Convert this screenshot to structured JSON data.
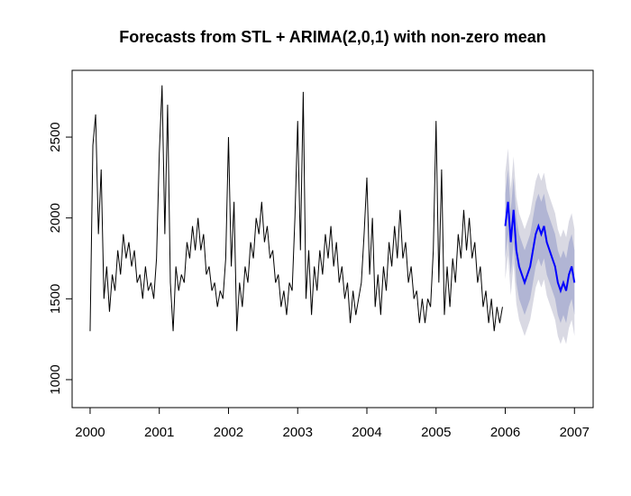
{
  "chart_data": {
    "type": "line",
    "title": "Forecasts from STL +  ARIMA(2,0,1) with non-zero mean",
    "xlim": [
      1999.74,
      2007.27
    ],
    "ylim": [
      827,
      2913
    ],
    "xticks": [
      2000,
      2001,
      2002,
      2003,
      2004,
      2005,
      2006,
      2007
    ],
    "yticks": [
      1000,
      1500,
      2000,
      2500
    ],
    "history": {
      "color": "#000000",
      "x": [
        2000.0,
        2000.04,
        2000.08,
        2000.12,
        2000.16,
        2000.2,
        2000.24,
        2000.28,
        2000.32,
        2000.36,
        2000.4,
        2000.44,
        2000.48,
        2000.52,
        2000.56,
        2000.6,
        2000.64,
        2000.68,
        2000.72,
        2000.76,
        2000.8,
        2000.84,
        2000.88,
        2000.92,
        2000.96,
        2001.0,
        2001.04,
        2001.08,
        2001.12,
        2001.16,
        2001.2,
        2001.24,
        2001.28,
        2001.32,
        2001.36,
        2001.4,
        2001.44,
        2001.48,
        2001.52,
        2001.56,
        2001.6,
        2001.64,
        2001.68,
        2001.72,
        2001.76,
        2001.8,
        2001.84,
        2001.88,
        2001.92,
        2001.96,
        2002.0,
        2002.04,
        2002.08,
        2002.12,
        2002.16,
        2002.2,
        2002.24,
        2002.28,
        2002.32,
        2002.36,
        2002.4,
        2002.44,
        2002.48,
        2002.52,
        2002.56,
        2002.6,
        2002.64,
        2002.68,
        2002.72,
        2002.76,
        2002.8,
        2002.84,
        2002.88,
        2002.92,
        2002.96,
        2003.0,
        2003.04,
        2003.08,
        2003.12,
        2003.16,
        2003.2,
        2003.24,
        2003.28,
        2003.32,
        2003.36,
        2003.4,
        2003.44,
        2003.48,
        2003.52,
        2003.56,
        2003.6,
        2003.64,
        2003.68,
        2003.72,
        2003.76,
        2003.8,
        2003.84,
        2003.88,
        2003.92,
        2003.96,
        2004.0,
        2004.04,
        2004.08,
        2004.12,
        2004.16,
        2004.2,
        2004.24,
        2004.28,
        2004.32,
        2004.36,
        2004.4,
        2004.44,
        2004.48,
        2004.52,
        2004.56,
        2004.6,
        2004.64,
        2004.68,
        2004.72,
        2004.76,
        2004.8,
        2004.84,
        2004.88,
        2004.92,
        2004.96,
        2005.0,
        2005.04,
        2005.08,
        2005.12,
        2005.16,
        2005.2,
        2005.24,
        2005.28,
        2005.32,
        2005.36,
        2005.4,
        2005.44,
        2005.48,
        2005.52,
        2005.56,
        2005.6,
        2005.64,
        2005.68,
        2005.72,
        2005.76,
        2005.8,
        2005.84,
        2005.88,
        2005.92,
        2005.96
      ],
      "values": [
        1300,
        2450,
        2640,
        1900,
        2300,
        1500,
        1700,
        1420,
        1650,
        1550,
        1800,
        1650,
        1900,
        1750,
        1850,
        1700,
        1800,
        1600,
        1650,
        1500,
        1700,
        1550,
        1600,
        1500,
        1750,
        2400,
        2820,
        1900,
        2700,
        1600,
        1300,
        1700,
        1550,
        1650,
        1600,
        1850,
        1750,
        1950,
        1800,
        2000,
        1800,
        1900,
        1650,
        1700,
        1550,
        1600,
        1450,
        1550,
        1500,
        1750,
        2500,
        1700,
        2100,
        1300,
        1600,
        1450,
        1700,
        1600,
        1850,
        1750,
        2000,
        1900,
        2100,
        1850,
        1950,
        1750,
        1800,
        1600,
        1650,
        1450,
        1550,
        1400,
        1600,
        1550,
        2000,
        2600,
        1800,
        2780,
        1500,
        1800,
        1400,
        1700,
        1550,
        1800,
        1650,
        1900,
        1750,
        1950,
        1700,
        1850,
        1600,
        1700,
        1500,
        1600,
        1350,
        1550,
        1400,
        1500,
        1600,
        1900,
        2250,
        1650,
        2000,
        1450,
        1650,
        1400,
        1700,
        1550,
        1850,
        1700,
        1950,
        1750,
        2050,
        1750,
        1850,
        1600,
        1700,
        1500,
        1550,
        1350,
        1500,
        1350,
        1500,
        1450,
        1800,
        2600,
        1600,
        2300,
        1400,
        1700,
        1450,
        1750,
        1600,
        1900,
        1750,
        2050,
        1800,
        2000,
        1750,
        1850,
        1600,
        1700,
        1450,
        1550,
        1350,
        1500,
        1300,
        1450,
        1350,
        1450
      ]
    },
    "forecast": {
      "color": "#0000ff",
      "band80_color": "#b1b5d4",
      "band95_color": "#d9d9e3",
      "x": [
        2006.0,
        2006.04,
        2006.08,
        2006.12,
        2006.16,
        2006.2,
        2006.24,
        2006.28,
        2006.32,
        2006.36,
        2006.4,
        2006.44,
        2006.48,
        2006.52,
        2006.56,
        2006.6,
        2006.64,
        2006.68,
        2006.72,
        2006.76,
        2006.8,
        2006.84,
        2006.88,
        2006.92,
        2006.96,
        2007.0
      ],
      "mean": [
        1950,
        2100,
        1850,
        2050,
        1800,
        1700,
        1650,
        1600,
        1650,
        1700,
        1800,
        1900,
        1950,
        1900,
        1950,
        1850,
        1800,
        1750,
        1700,
        1600,
        1550,
        1600,
        1550,
        1650,
        1700,
        1600
      ],
      "lo80": [
        1750,
        1900,
        1650,
        1850,
        1600,
        1500,
        1450,
        1400,
        1450,
        1500,
        1600,
        1700,
        1750,
        1700,
        1750,
        1650,
        1600,
        1550,
        1500,
        1400,
        1350,
        1400,
        1350,
        1450,
        1500,
        1400
      ],
      "hi80": [
        2150,
        2300,
        2050,
        2250,
        2000,
        1900,
        1850,
        1800,
        1850,
        1900,
        2000,
        2100,
        2150,
        2100,
        2150,
        2050,
        2000,
        1950,
        1900,
        1800,
        1750,
        1800,
        1750,
        1850,
        1900,
        1800
      ],
      "lo95": [
        1620,
        1770,
        1520,
        1720,
        1470,
        1370,
        1320,
        1270,
        1320,
        1370,
        1470,
        1570,
        1620,
        1570,
        1620,
        1520,
        1470,
        1420,
        1370,
        1270,
        1220,
        1270,
        1220,
        1320,
        1370,
        1270
      ],
      "hi95": [
        2280,
        2430,
        2180,
        2380,
        2130,
        2030,
        1980,
        1930,
        1980,
        2030,
        2130,
        2230,
        2280,
        2230,
        2280,
        2180,
        2130,
        2080,
        2030,
        1930,
        1880,
        1930,
        1880,
        1980,
        2030,
        1930
      ]
    }
  }
}
